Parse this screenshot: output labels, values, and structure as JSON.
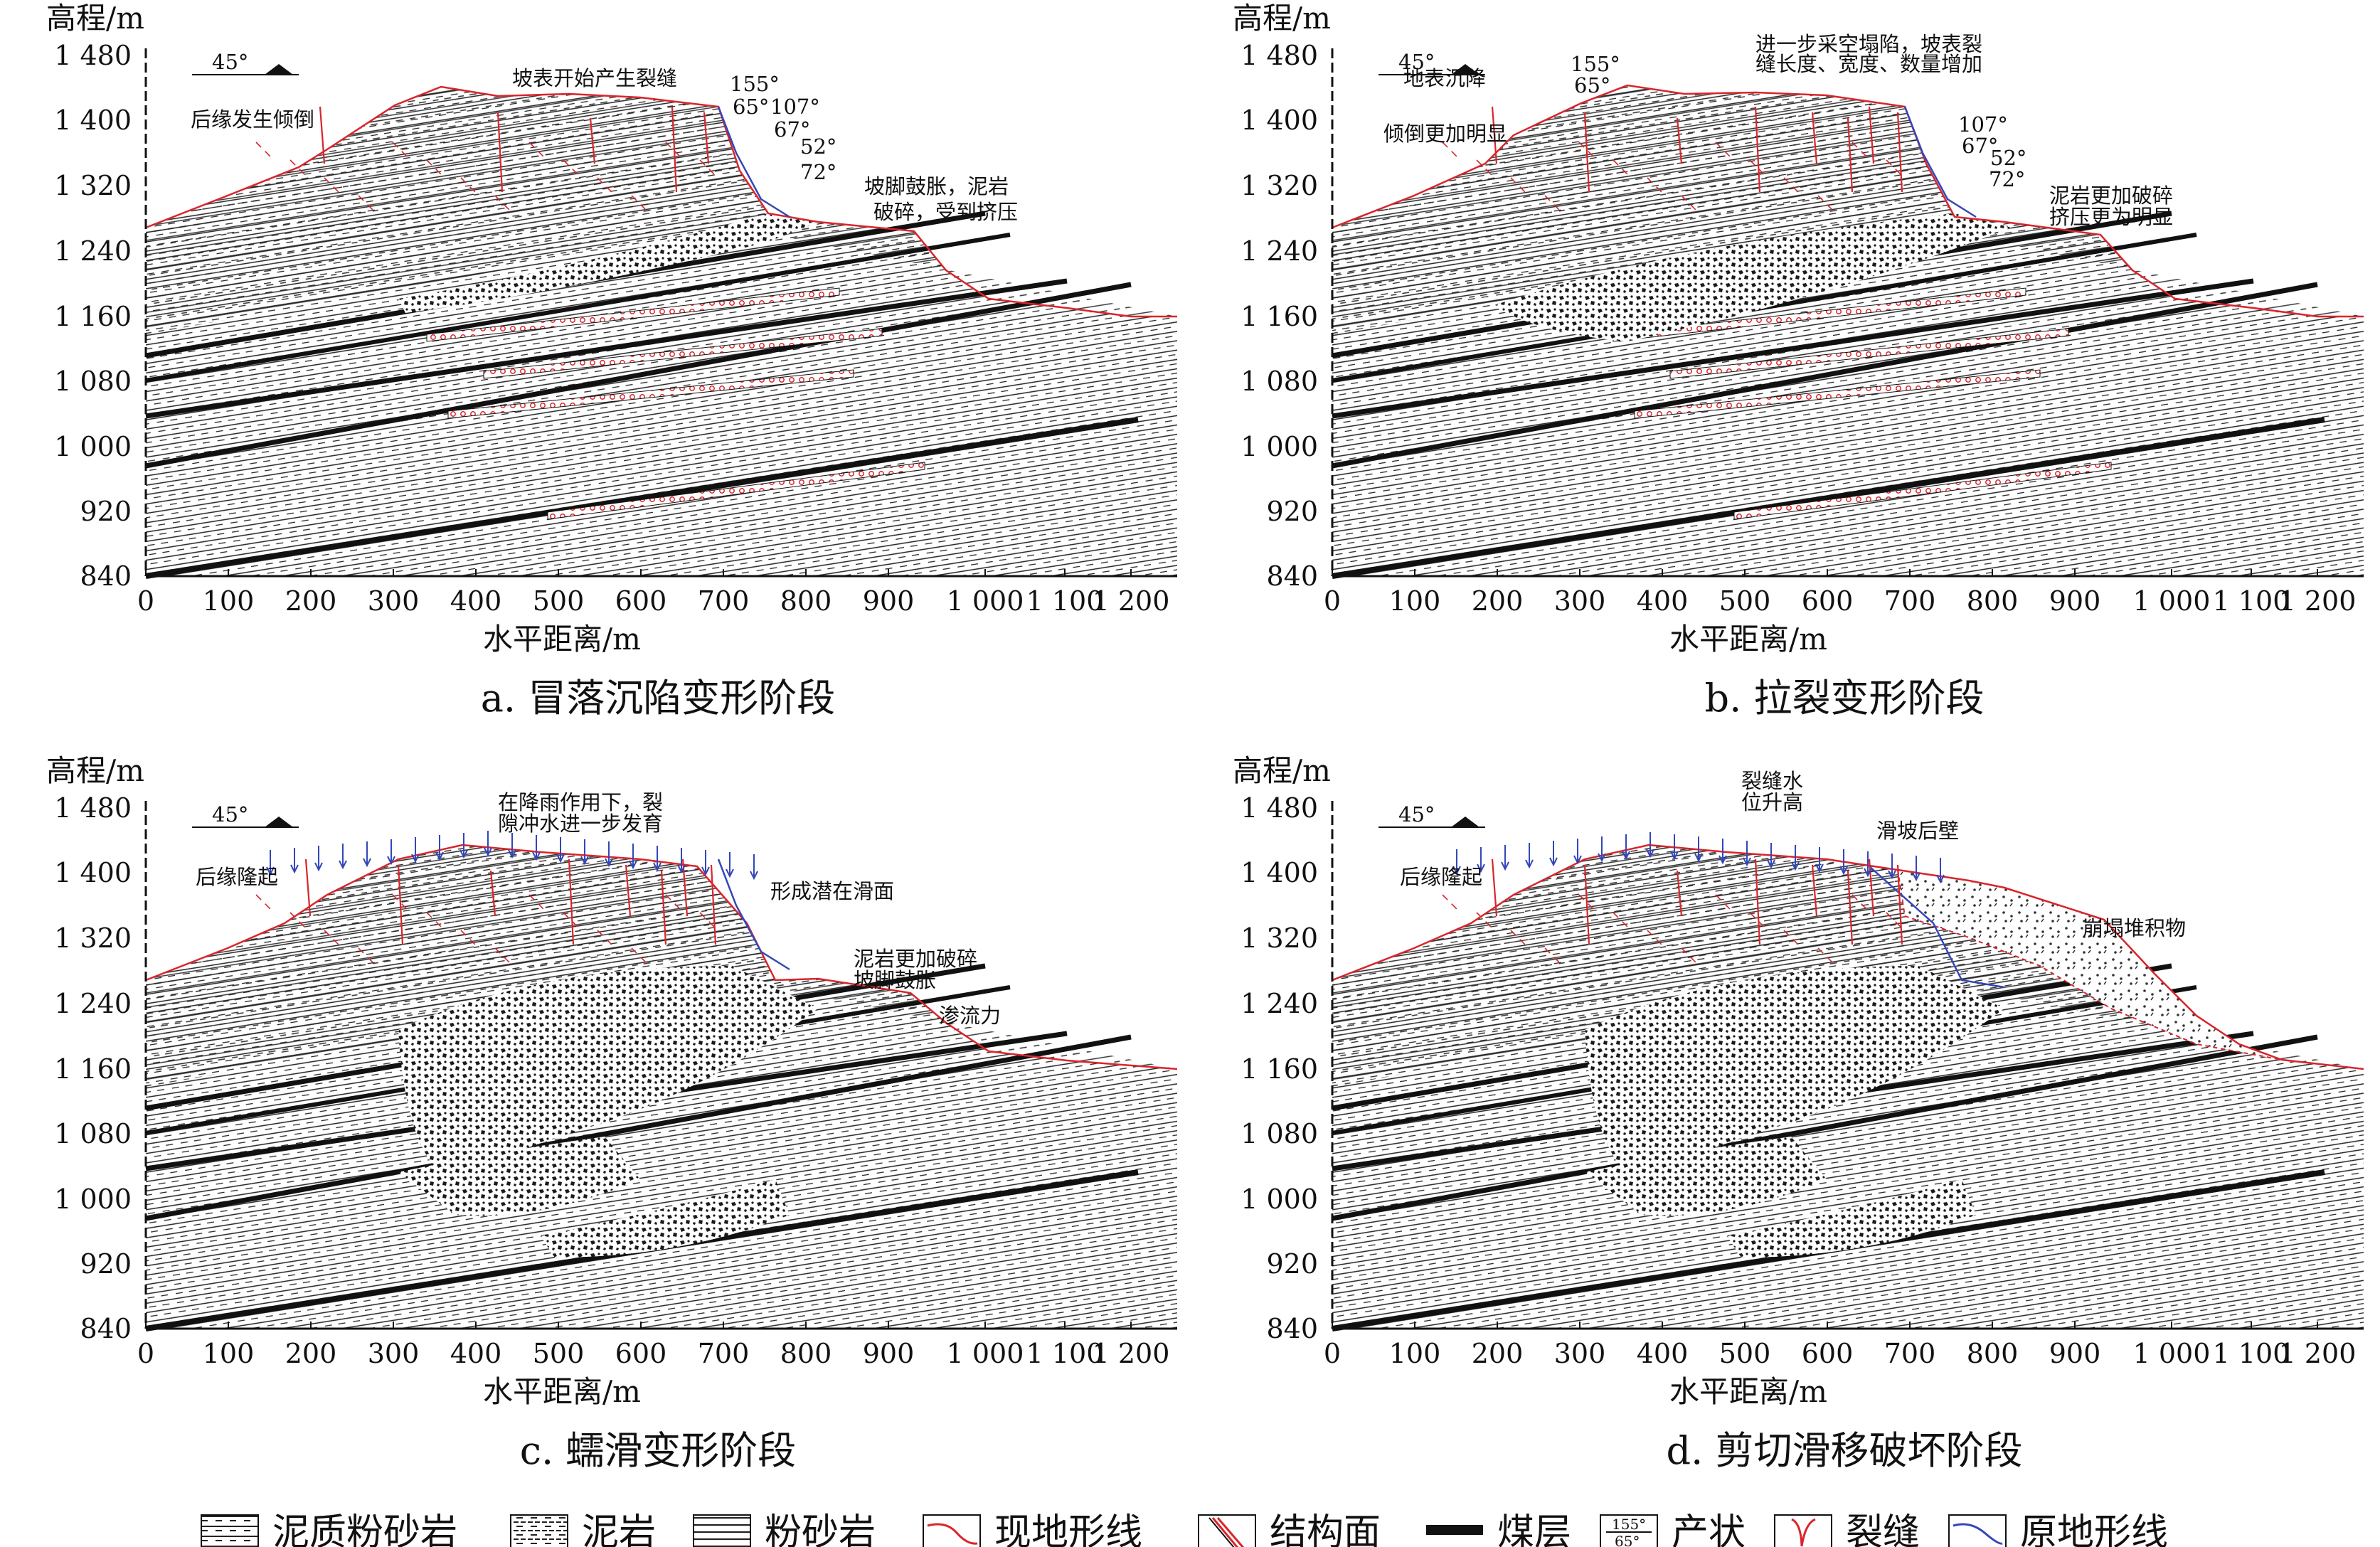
{
  "panels": [
    {
      "id": "a",
      "caption": "a. 冒落沉陷变形阶段",
      "ylabel": "高程/m",
      "xlabel": "水平距离/m",
      "yticks": [
        "1 480",
        "1 400",
        "1 320",
        "1 240",
        "1 160",
        "1 080",
        "1 000",
        "920",
        "840"
      ],
      "xticks": [
        "0",
        "100",
        "200",
        "300",
        "400",
        "500",
        "600",
        "700",
        "800",
        "900",
        "1 000",
        "1 100",
        "1 200"
      ],
      "dip_label": "45°",
      "annotations": [
        "坡表开始产生裂缝",
        "后缘发生倾倒",
        "坡脚鼓胀，泥岩",
        "破碎，受到挤压"
      ],
      "angles": [
        "155°",
        "65°",
        "107°",
        "67°",
        "52°",
        "72°"
      ]
    },
    {
      "id": "b",
      "caption": "b. 拉裂变形阶段",
      "ylabel": "高程/m",
      "xlabel": "水平距离/m",
      "yticks": [
        "1 480",
        "1 400",
        "1 320",
        "1 240",
        "1 160",
        "1 080",
        "1 000",
        "920",
        "840"
      ],
      "xticks": [
        "0",
        "100",
        "200",
        "300",
        "400",
        "500",
        "600",
        "700",
        "800",
        "900",
        "1 000",
        "1 100",
        "1 200"
      ],
      "dip_label": "45°",
      "annotations": [
        "地表沉降",
        "进一步采空塌陷，坡表裂",
        "缝长度、宽度、数量增加",
        "倾倒更加明显",
        "泥岩更加破碎",
        "挤压更为明显"
      ],
      "angles": [
        "155°",
        "65°",
        "107°",
        "67°",
        "52°",
        "72°"
      ]
    },
    {
      "id": "c",
      "caption": "c. 蠕滑变形阶段",
      "ylabel": "高程/m",
      "xlabel": "水平距离/m",
      "yticks": [
        "1 480",
        "1 400",
        "1 320",
        "1 240",
        "1 160",
        "1 080",
        "1 000",
        "920",
        "840"
      ],
      "xticks": [
        "0",
        "100",
        "200",
        "300",
        "400",
        "500",
        "600",
        "700",
        "800",
        "900",
        "1 000",
        "1 100",
        "1 200"
      ],
      "dip_label": "45°",
      "annotations": [
        "在降雨作用下，裂",
        "隙冲水进一步发育",
        "后缘隆起",
        "形成潜在滑面",
        "泥岩更加破碎",
        "坡脚鼓胀",
        "渗流力"
      ]
    },
    {
      "id": "d",
      "caption": "d. 剪切滑移破坏阶段",
      "ylabel": "高程/m",
      "xlabel": "水平距离/m",
      "yticks": [
        "1 480",
        "1 400",
        "1 320",
        "1 240",
        "1 160",
        "1 080",
        "1 000",
        "920",
        "840"
      ],
      "xticks": [
        "0",
        "100",
        "200",
        "300",
        "400",
        "500",
        "600",
        "700",
        "800",
        "900",
        "1 000",
        "1 100",
        "1 200"
      ],
      "dip_label": "45°",
      "annotations": [
        "裂缝水",
        "位升高",
        "后缘隆起",
        "滑坡后壁",
        "崩塌堆积物"
      ]
    }
  ],
  "legend": [
    {
      "label": "泥质粉砂岩",
      "swatch": "muddy-siltstone"
    },
    {
      "label": "泥岩",
      "swatch": "mudstone"
    },
    {
      "label": "粉砂岩",
      "swatch": "siltstone"
    },
    {
      "label": "现地形线",
      "swatch": "current-terrain"
    },
    {
      "label": "结构面",
      "swatch": "structural-plane"
    },
    {
      "label": "煤层",
      "swatch": "coal-seam"
    },
    {
      "label": "产状",
      "swatch": "attitude",
      "top": "155°",
      "bottom": "65°"
    },
    {
      "label": "裂缝",
      "swatch": "crack"
    },
    {
      "label": "原地形线",
      "swatch": "original-terrain"
    }
  ],
  "colors": {
    "crack": "#d9252b",
    "terrain": "#3347b8",
    "ink": "#111111"
  }
}
